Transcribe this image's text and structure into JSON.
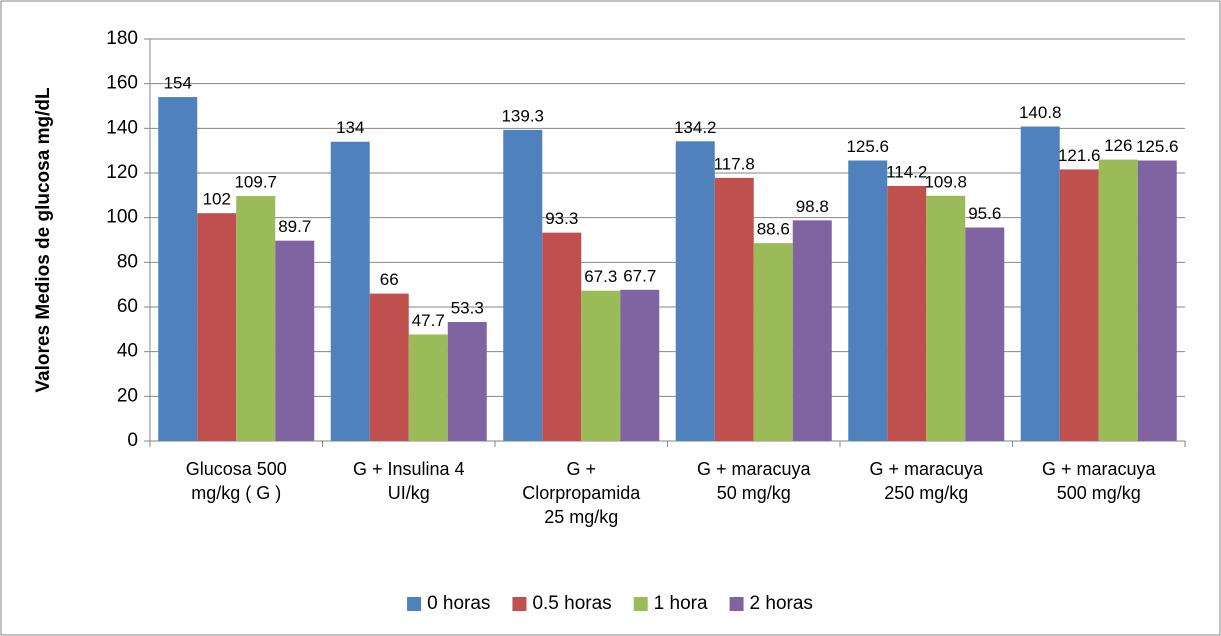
{
  "chart_data": {
    "type": "bar",
    "y_label": "Valores Medios de glucosa mg/dL",
    "categories": [
      "Glucosa 500 mg/kg ( G )",
      "G + Insulina 4 UI/kg",
      "G + Clorpropamida 25 mg/kg",
      "G + maracuya 50 mg/kg",
      "G + maracuya 250 mg/kg",
      "G + maracuya 500 mg/kg"
    ],
    "series": [
      {
        "name": "0 horas",
        "color": "#4f81bd",
        "values": [
          154,
          134,
          139.3,
          134.2,
          125.6,
          140.8
        ]
      },
      {
        "name": "0.5 horas",
        "color": "#c0504d",
        "values": [
          102,
          66,
          93.3,
          117.8,
          114.2,
          121.6
        ]
      },
      {
        "name": "1 hora",
        "color": "#9bbb59",
        "values": [
          109.7,
          47.7,
          67.3,
          88.6,
          109.8,
          126
        ]
      },
      {
        "name": "2 horas",
        "color": "#8064a2",
        "values": [
          89.7,
          53.3,
          67.7,
          98.8,
          95.6,
          125.6
        ]
      }
    ],
    "ylim": [
      0,
      180
    ],
    "yticks": [
      0,
      20,
      40,
      60,
      80,
      100,
      120,
      140,
      160,
      180
    ],
    "grid": true,
    "legend": "bottom"
  }
}
